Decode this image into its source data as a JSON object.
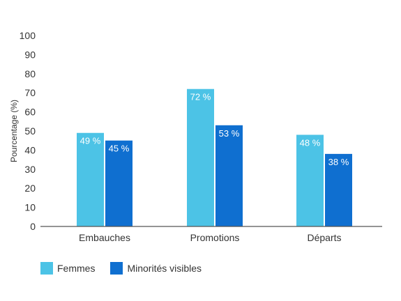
{
  "chart_data": {
    "type": "bar",
    "categories": [
      "Embauches",
      "Promotions",
      "Départs"
    ],
    "series": [
      {
        "name": "Femmes",
        "values": [
          49,
          72,
          48
        ],
        "labels": [
          "49 %",
          "72 %",
          "48 %"
        ],
        "color": "#4cc3e6"
      },
      {
        "name": "Minorités visibles",
        "values": [
          45,
          53,
          38
        ],
        "labels": [
          "45 %",
          "53 %",
          "38 %"
        ],
        "color": "#0f6fd0"
      }
    ],
    "title": "",
    "xlabel": "",
    "ylabel": "Pourcentage (%)",
    "ylim": [
      0,
      100
    ],
    "yticks": [
      "0",
      "10",
      "20",
      "30",
      "40",
      "50",
      "60",
      "70",
      "80",
      "90",
      "100"
    ],
    "grid": false,
    "legend_position": "bottom-left"
  }
}
